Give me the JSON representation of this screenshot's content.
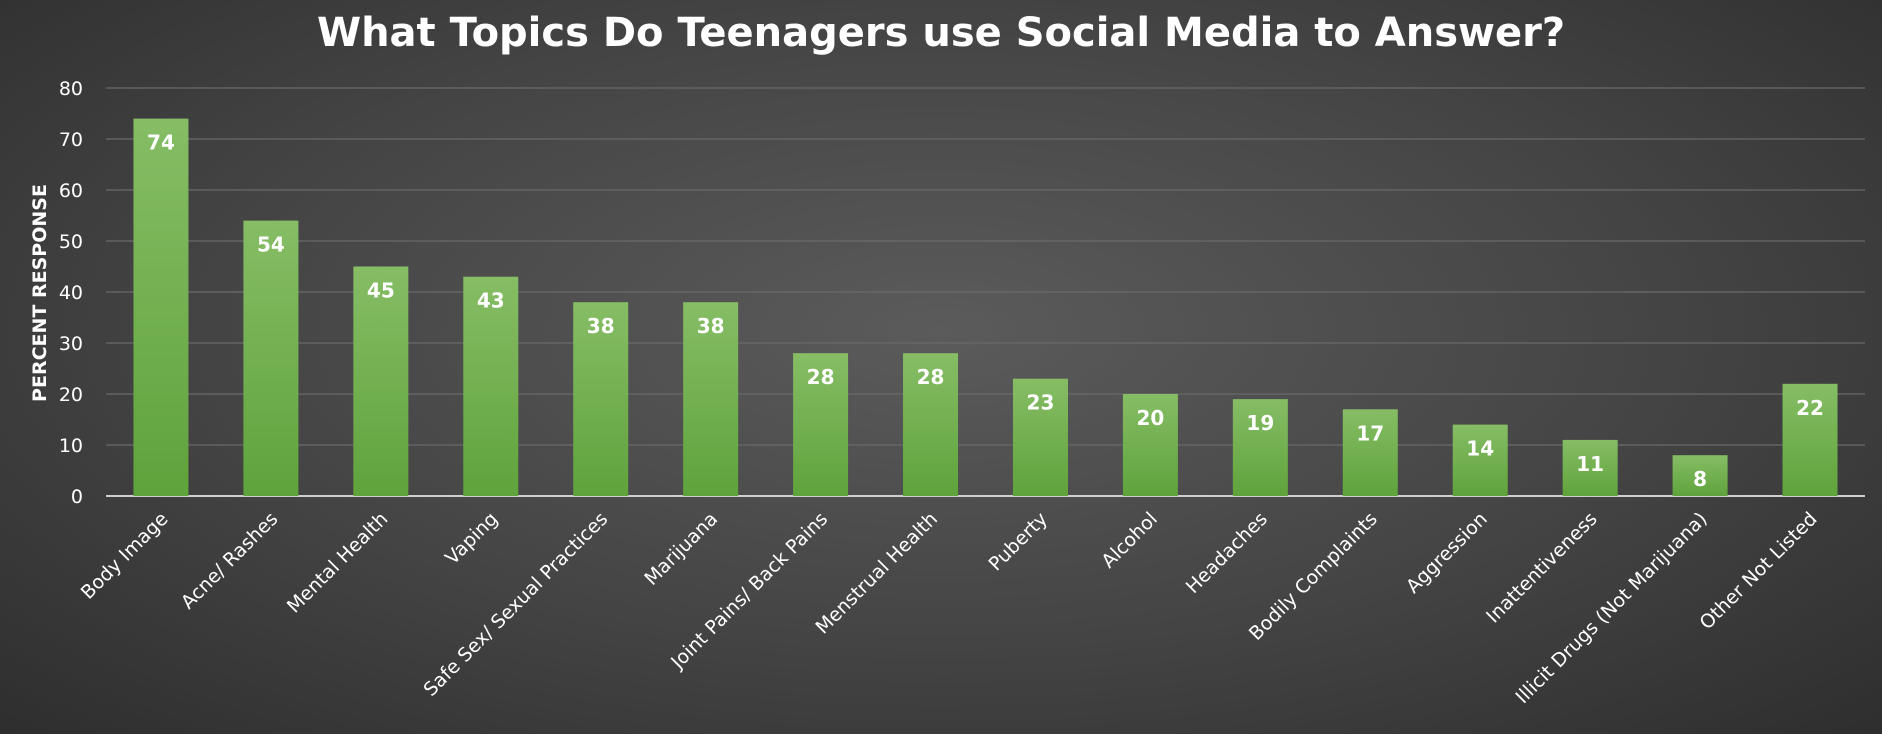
{
  "chart_data": {
    "type": "bar",
    "title": "What Topics Do Teenagers use Social Media to Answer?",
    "xlabel": "",
    "ylabel": "PERCENT RESPONSE",
    "ylim": [
      0,
      80
    ],
    "yticks": [
      0,
      10,
      20,
      30,
      40,
      50,
      60,
      70,
      80
    ],
    "grid": true,
    "legend": "none",
    "categories": [
      "Body Image",
      "Acne/ Rashes",
      "Mental Health",
      "Vaping",
      "Safe Sex/ Sexual Practices",
      "Marijuana",
      "Joint Pains/ Back Pains",
      "Menstrual Health",
      "Puberty",
      "Alcohol",
      "Headaches",
      "Bodily Complaints",
      "Aggression",
      "Inattentiveness",
      "Illicit Drugs (Not Marijuana)",
      "Other Not Listed"
    ],
    "values": [
      74,
      54,
      45,
      43,
      38,
      38,
      28,
      28,
      23,
      20,
      19,
      17,
      14,
      11,
      8,
      22
    ],
    "data_labels": true
  },
  "colors": {
    "bar_top": "#86bd65",
    "bar_bottom": "#5fa33c",
    "text": "#ffffff",
    "grid": "#6a6a6a",
    "axis": "#cfcfcf"
  }
}
